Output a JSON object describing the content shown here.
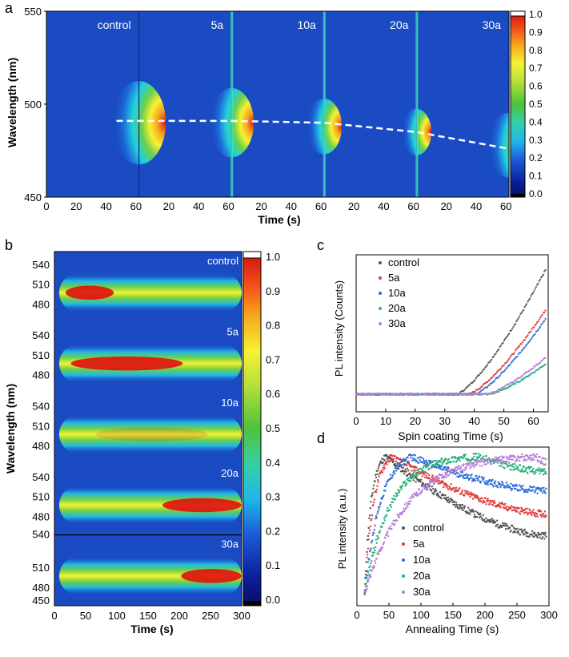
{
  "colors": {
    "low": "#0a1f9a",
    "mid": "#1fd0e0",
    "green": "#4ec23c",
    "yellow": "#f6f232",
    "high": "#e01010",
    "curve": "#ffffff",
    "control": "#555555",
    "5a": "#e23b3b",
    "10a": "#2d6fd6",
    "20a": "#2bb07a",
    "30a": "#b77fd8"
  },
  "panels": {
    "a": {
      "letter": "a"
    },
    "b": {
      "letter": "b"
    },
    "c": {
      "letter": "c"
    },
    "d": {
      "letter": "d"
    }
  },
  "chart_data": [
    {
      "id": "a",
      "type": "heatmap",
      "title": "",
      "xlabel": "Time (s)",
      "ylabel": "Wavelength (nm)",
      "ylim": [
        450,
        550
      ],
      "yticks": [
        "450",
        "500",
        "550"
      ],
      "xticks": [
        "0",
        "20",
        "40",
        "60"
      ],
      "xlim_each": [
        0,
        62
      ],
      "segments": [
        {
          "label": "control",
          "peak_nm": 490,
          "onset_s": 44
        },
        {
          "label": "5a",
          "peak_nm": 490,
          "onset_s": 47
        },
        {
          "label": "10a",
          "peak_nm": 488,
          "onset_s": 50
        },
        {
          "label": "20a",
          "peak_nm": 485,
          "onset_s": 52
        },
        {
          "label": "30a",
          "peak_nm": 478,
          "onset_s": 48
        }
      ],
      "trend_curve": [
        [
          47,
          491
        ],
        [
          62,
          491
        ],
        [
          124,
          491
        ],
        [
          186,
          490
        ],
        [
          248,
          485
        ],
        [
          310,
          476
        ]
      ],
      "colorbar_ticks": [
        "1.0",
        "0.9",
        "0.8",
        "0.7",
        "0.6",
        "0.5",
        "0.4",
        "0.3",
        "0.2",
        "0.1",
        "0.0"
      ],
      "colorbar_range": [
        0,
        1
      ]
    },
    {
      "id": "b",
      "type": "heatmap",
      "xlabel": "Time (s)",
      "ylabel": "Wavelength (nm)",
      "xlim": [
        0,
        300
      ],
      "xticks": [
        "0",
        "50",
        "100",
        "150",
        "200",
        "250",
        "300"
      ],
      "yticks_group": [
        "480",
        "510",
        "540"
      ],
      "ytick_bottom": "450",
      "groups": [
        {
          "label": "control",
          "center_nm": 492,
          "peak_time_s": 30,
          "decay": 0.6
        },
        {
          "label": "5a",
          "center_nm": 492,
          "peak_time_s": 80,
          "decay": 0.25
        },
        {
          "label": "10a",
          "center_nm": 491,
          "peak_time_s": 120,
          "decay": 0.3
        },
        {
          "label": "20a",
          "center_nm": 490,
          "peak_time_s": 250,
          "decay": 0.0
        },
        {
          "label": "30a",
          "center_nm": 490,
          "peak_time_s": 280,
          "decay": 0.0
        }
      ],
      "colorbar_ticks": [
        "1.0",
        "0.9",
        "0.8",
        "0.7",
        "0.6",
        "0.5",
        "0.4",
        "0.3",
        "0.2",
        "0.1",
        "0.0"
      ],
      "colorbar_range": [
        0,
        1
      ]
    },
    {
      "id": "c",
      "type": "scatter",
      "xlabel": "Spin coating Time (s)",
      "ylabel": "PL intensity (Counts)",
      "xlim": [
        0,
        65
      ],
      "ylim": [
        0,
        1
      ],
      "xticks": [
        "0",
        "10",
        "20",
        "30",
        "40",
        "50",
        "60"
      ],
      "legend_position": "top-left",
      "series": [
        {
          "name": "control",
          "onset": 34,
          "end_value": 0.99
        },
        {
          "name": "5a",
          "onset": 38,
          "end_value": 0.67
        },
        {
          "name": "10a",
          "onset": 40,
          "end_value": 0.6
        },
        {
          "name": "20a",
          "onset": 45,
          "end_value": 0.24
        },
        {
          "name": "30a",
          "onset": 44,
          "end_value": 0.29
        }
      ]
    },
    {
      "id": "d",
      "type": "scatter",
      "xlabel": "Annealing Time (s)",
      "ylabel": "PL intensity (a.u.)",
      "xlim": [
        0,
        300
      ],
      "ylim": [
        0,
        1
      ],
      "xticks": [
        "0",
        "50",
        "100",
        "150",
        "200",
        "250",
        "300"
      ],
      "legend_position": "bottom-center",
      "series": [
        {
          "name": "control",
          "rise_tau": 10,
          "peak_s": 45,
          "end_value": 0.42
        },
        {
          "name": "5a",
          "rise_tau": 14,
          "peak_s": 55,
          "end_value": 0.58
        },
        {
          "name": "10a",
          "rise_tau": 25,
          "peak_s": 85,
          "end_value": 0.75
        },
        {
          "name": "20a",
          "rise_tau": 40,
          "peak_s": 190,
          "end_value": 0.89
        },
        {
          "name": "30a",
          "rise_tau": 65,
          "peak_s": 280,
          "end_value": 0.96
        }
      ]
    }
  ]
}
